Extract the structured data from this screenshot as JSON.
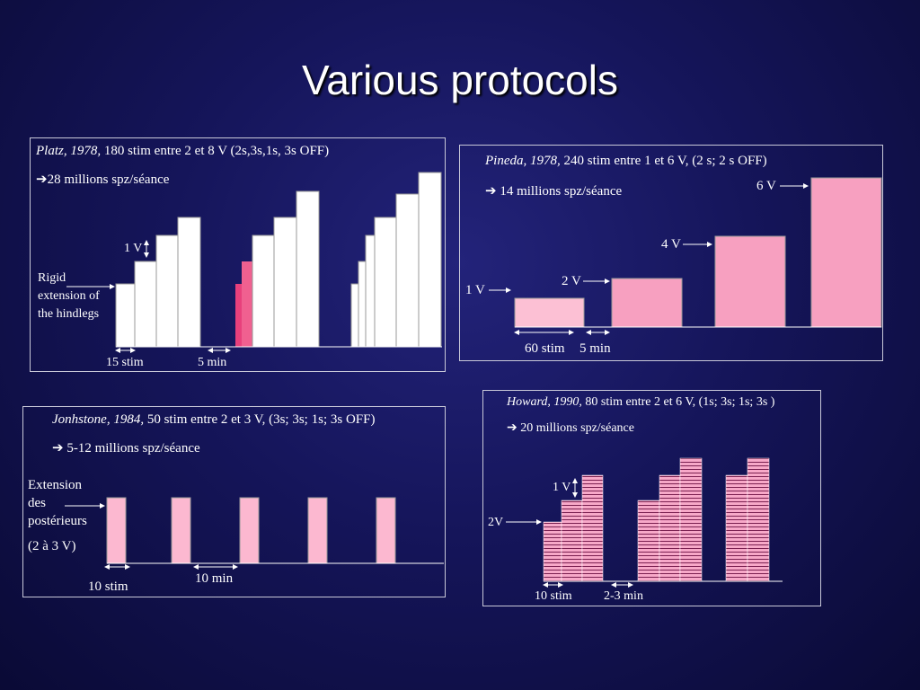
{
  "title": "Various protocols",
  "colors": {
    "background": "#15155a",
    "bar_white": "#ffffff",
    "bar_pink": "#f7a8c8",
    "bar_light_pink": "#fcc0d4",
    "bar_hot_pink": "#e8407c"
  },
  "platz": {
    "ref": "Platz, 1978,",
    "desc": "180 stim entre 2 et 8 V (2s,3s,1s, 3s OFF)",
    "arrow": "➔",
    "result": "28 millions spz/séance",
    "volt_label": "1 V",
    "side_label": [
      "Rigid",
      "extension of",
      "the hindlegs"
    ],
    "stim_label": "15 stim",
    "pause_label": "5 min"
  },
  "pineda": {
    "ref": "Pineda, 1978,",
    "desc": "240 stim entre 1 et 6 V, (2 s; 2 s OFF)",
    "arrow": "➔",
    "result": "14 millions spz/séance",
    "volts": [
      "1 V",
      "2 V",
      "4 V",
      "6 V"
    ],
    "stim_label": "60 stim",
    "pause_label": "5 min"
  },
  "jonhstone": {
    "ref": "Jonhstone, 1984,",
    "desc": "50 stim entre 2 et 3 V, (3s; 3s; 1s; 3s OFF)",
    "arrow": "➔",
    "result": "5-12 millions spz/séance",
    "side_label": [
      "Extension",
      "des",
      "postérieurs"
    ],
    "range_label": "(2 à 3 V)",
    "stim_label": "10 stim",
    "pause_label": "10 min"
  },
  "howard": {
    "ref": "Howard, 1990,",
    "desc": "80 stim entre 2 et 6 V, (1s; 3s; 1s; 3s )",
    "arrow": "➔",
    "result": "20 millions spz/séance",
    "volt_label": "1 V",
    "start_label": "2V",
    "stim_label": "10 stim",
    "pause_label": "2-3 min"
  }
}
